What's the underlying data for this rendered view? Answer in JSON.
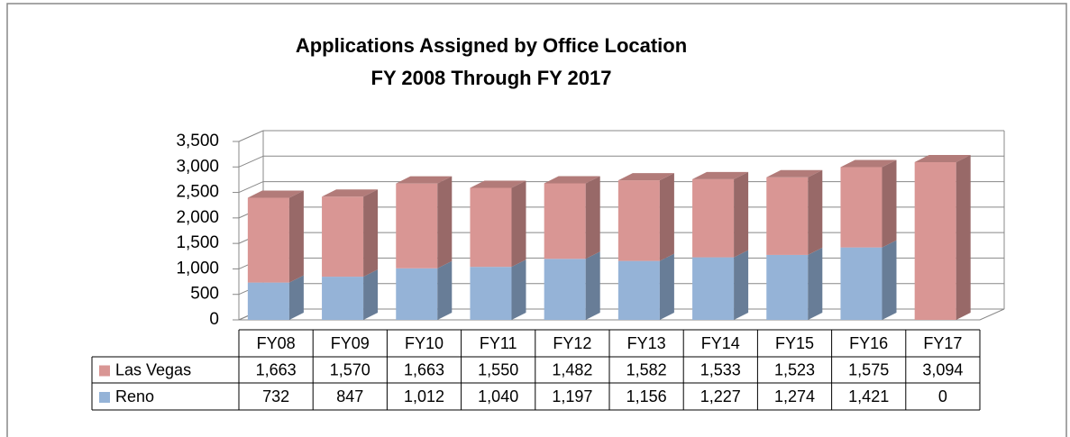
{
  "chart_data": {
    "type": "bar3d_stacked",
    "title": "Applications Assigned by Office Location",
    "subtitle": "FY 2008 Through FY 2017",
    "categories": [
      "FY08",
      "FY09",
      "FY10",
      "FY11",
      "FY12",
      "FY13",
      "FY14",
      "FY15",
      "FY16",
      "FY17"
    ],
    "series": [
      {
        "name": "Reno",
        "color": "#95b3d7",
        "values": [
          732,
          847,
          1012,
          1040,
          1197,
          1156,
          1227,
          1274,
          1421,
          0
        ],
        "value_labels": [
          "732",
          "847",
          "1,012",
          "1,040",
          "1,197",
          "1,156",
          "1,227",
          "1,274",
          "1,421",
          "0"
        ]
      },
      {
        "name": "Las Vegas",
        "color": "#d99694",
        "values": [
          1663,
          1570,
          1663,
          1550,
          1482,
          1582,
          1533,
          1523,
          1575,
          3094
        ],
        "value_labels": [
          "1,663",
          "1,570",
          "1,663",
          "1,550",
          "1,482",
          "1,582",
          "1,533",
          "1,523",
          "1,575",
          "3,094"
        ]
      }
    ],
    "ylim": [
      0,
      3500
    ],
    "yticks": [
      0,
      500,
      {
        "value": 1000,
        "label": "1,000"
      },
      {
        "value": 1500,
        "label": "1,500"
      },
      {
        "value": 2000,
        "label": "2,000"
      },
      {
        "value": 2500,
        "label": "2,500"
      },
      {
        "value": 3000,
        "label": "3,000"
      },
      {
        "value": 3500,
        "label": "3,500"
      }
    ],
    "grid": true
  }
}
